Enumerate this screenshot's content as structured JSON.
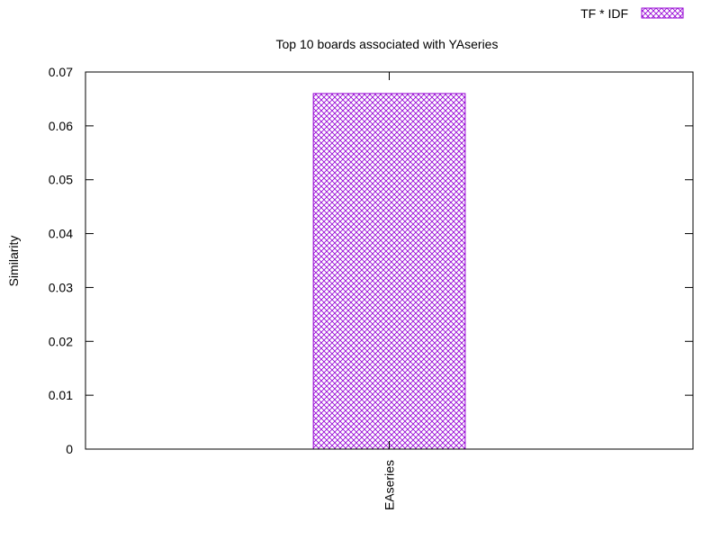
{
  "chart_data": {
    "type": "bar",
    "title": "Top 10 boards associated with YAseries",
    "xlabel": "",
    "ylabel": "Similarity",
    "ylim": [
      0,
      0.07
    ],
    "yticks": [
      "0",
      "0.01",
      "0.02",
      "0.03",
      "0.04",
      "0.05",
      "0.06",
      "0.07"
    ],
    "categories": [
      "EAseries"
    ],
    "series": [
      {
        "name": "TF * IDF",
        "values": [
          0.066
        ]
      }
    ],
    "bar_color": "#9400d3",
    "bar_pattern": "crosshatch",
    "legend_position": "top-right",
    "grid": false
  }
}
